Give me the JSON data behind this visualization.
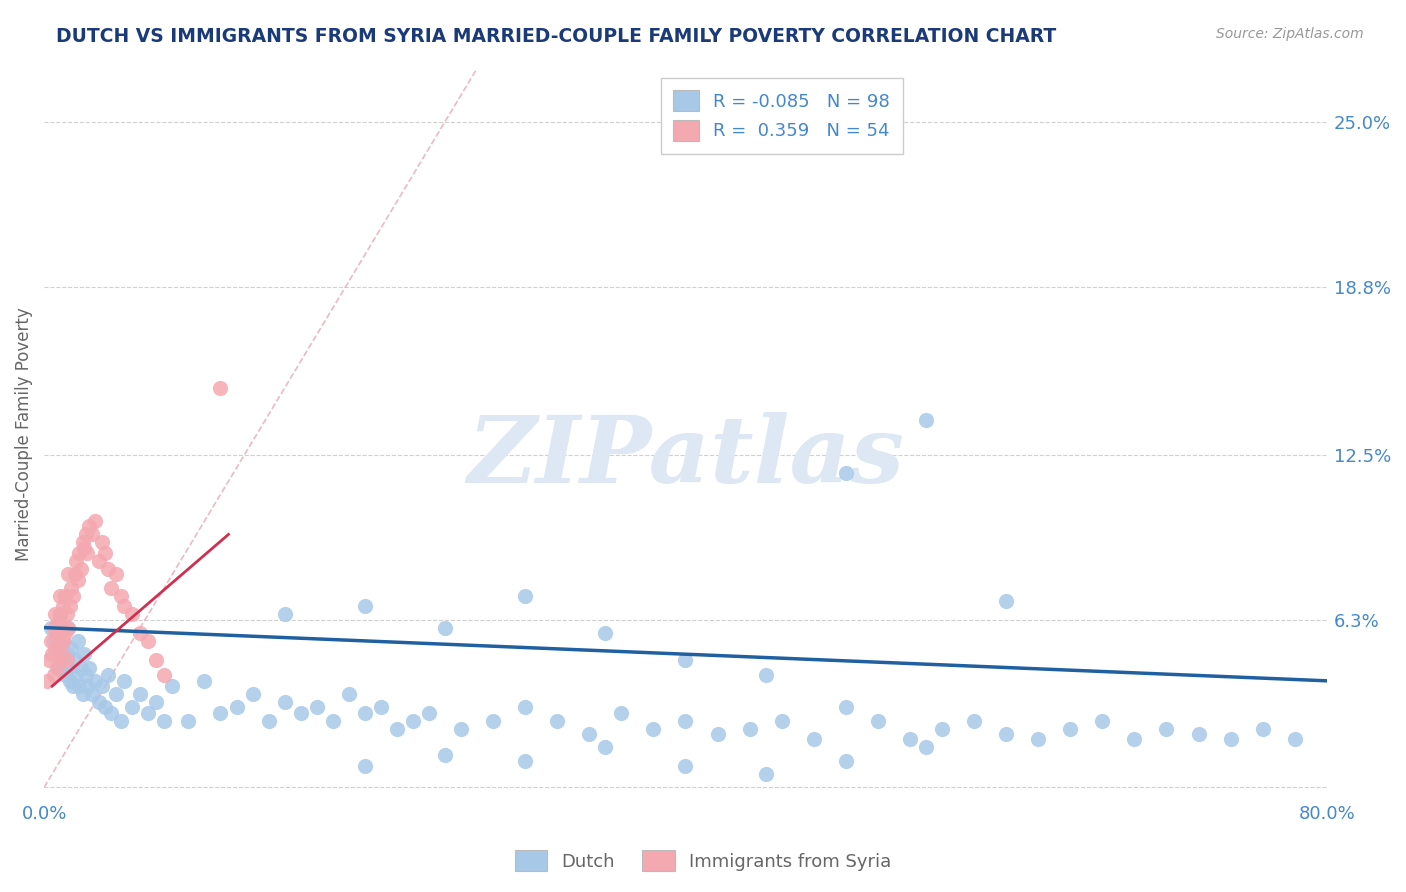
{
  "title": "DUTCH VS IMMIGRANTS FROM SYRIA MARRIED-COUPLE FAMILY POVERTY CORRELATION CHART",
  "source": "Source: ZipAtlas.com",
  "ylabel": "Married-Couple Family Poverty",
  "xlim": [
    0.0,
    0.8
  ],
  "ylim": [
    -0.005,
    0.27
  ],
  "ytick_vals": [
    0.0,
    0.063,
    0.125,
    0.188,
    0.25
  ],
  "ytick_labels": [
    "",
    "6.3%",
    "12.5%",
    "18.8%",
    "25.0%"
  ],
  "xtick_vals": [
    0.0,
    0.8
  ],
  "xtick_labels": [
    "0.0%",
    "80.0%"
  ],
  "dutch_R": -0.085,
  "dutch_N": 98,
  "syria_R": 0.359,
  "syria_N": 54,
  "dutch_color": "#a8c8e8",
  "syria_color": "#f4a8b0",
  "dutch_line_color": "#2060a0",
  "syria_line_color": "#d03050",
  "diag_color": "#e8a8b0",
  "grid_color": "#d0d0d0",
  "title_color": "#1a3a7a",
  "axis_label_color": "#666666",
  "tick_color": "#4488cc",
  "legend_text_color_r": "#cc3333",
  "legend_text_color_n": "#4488cc",
  "watermark_color": "#dde8f4",
  "background_color": "#ffffff",
  "dutch_scatter_x": [
    0.004,
    0.006,
    0.008,
    0.009,
    0.01,
    0.01,
    0.011,
    0.012,
    0.013,
    0.014,
    0.015,
    0.015,
    0.016,
    0.017,
    0.018,
    0.019,
    0.02,
    0.021,
    0.022,
    0.023,
    0.024,
    0.025,
    0.026,
    0.027,
    0.028,
    0.03,
    0.032,
    0.034,
    0.036,
    0.038,
    0.04,
    0.042,
    0.045,
    0.048,
    0.05,
    0.055,
    0.06,
    0.065,
    0.07,
    0.075,
    0.08,
    0.09,
    0.1,
    0.11,
    0.12,
    0.13,
    0.14,
    0.15,
    0.16,
    0.17,
    0.18,
    0.19,
    0.2,
    0.21,
    0.22,
    0.23,
    0.24,
    0.26,
    0.28,
    0.3,
    0.32,
    0.34,
    0.36,
    0.38,
    0.4,
    0.42,
    0.44,
    0.46,
    0.48,
    0.5,
    0.52,
    0.54,
    0.56,
    0.58,
    0.6,
    0.62,
    0.64,
    0.66,
    0.68,
    0.7,
    0.72,
    0.74,
    0.76,
    0.78,
    0.15,
    0.2,
    0.25,
    0.3,
    0.35,
    0.4,
    0.45,
    0.5,
    0.55,
    0.6,
    0.2,
    0.25,
    0.3,
    0.35,
    0.55,
    0.4,
    0.45,
    0.5
  ],
  "dutch_scatter_y": [
    0.06,
    0.055,
    0.058,
    0.045,
    0.065,
    0.052,
    0.048,
    0.055,
    0.042,
    0.05,
    0.045,
    0.06,
    0.04,
    0.052,
    0.038,
    0.048,
    0.042,
    0.055,
    0.038,
    0.045,
    0.035,
    0.05,
    0.042,
    0.038,
    0.045,
    0.035,
    0.04,
    0.032,
    0.038,
    0.03,
    0.042,
    0.028,
    0.035,
    0.025,
    0.04,
    0.03,
    0.035,
    0.028,
    0.032,
    0.025,
    0.038,
    0.025,
    0.04,
    0.028,
    0.03,
    0.035,
    0.025,
    0.032,
    0.028,
    0.03,
    0.025,
    0.035,
    0.028,
    0.03,
    0.022,
    0.025,
    0.028,
    0.022,
    0.025,
    0.03,
    0.025,
    0.02,
    0.028,
    0.022,
    0.025,
    0.02,
    0.022,
    0.025,
    0.018,
    0.03,
    0.025,
    0.018,
    0.022,
    0.025,
    0.02,
    0.018,
    0.022,
    0.025,
    0.018,
    0.022,
    0.02,
    0.018,
    0.022,
    0.018,
    0.065,
    0.068,
    0.06,
    0.072,
    0.058,
    0.048,
    0.042,
    0.118,
    0.138,
    0.07,
    0.008,
    0.012,
    0.01,
    0.015,
    0.015,
    0.008,
    0.005,
    0.01
  ],
  "syria_scatter_x": [
    0.002,
    0.003,
    0.004,
    0.005,
    0.006,
    0.006,
    0.007,
    0.007,
    0.008,
    0.008,
    0.009,
    0.009,
    0.01,
    0.01,
    0.01,
    0.011,
    0.011,
    0.012,
    0.012,
    0.013,
    0.013,
    0.014,
    0.014,
    0.015,
    0.015,
    0.016,
    0.017,
    0.018,
    0.019,
    0.02,
    0.021,
    0.022,
    0.023,
    0.024,
    0.025,
    0.026,
    0.027,
    0.028,
    0.03,
    0.032,
    0.034,
    0.036,
    0.038,
    0.04,
    0.042,
    0.045,
    0.048,
    0.05,
    0.055,
    0.06,
    0.065,
    0.07,
    0.075,
    0.11
  ],
  "syria_scatter_y": [
    0.04,
    0.048,
    0.055,
    0.05,
    0.06,
    0.042,
    0.065,
    0.052,
    0.058,
    0.045,
    0.062,
    0.048,
    0.055,
    0.065,
    0.072,
    0.06,
    0.05,
    0.055,
    0.068,
    0.058,
    0.072,
    0.065,
    0.048,
    0.08,
    0.06,
    0.068,
    0.075,
    0.072,
    0.08,
    0.085,
    0.078,
    0.088,
    0.082,
    0.092,
    0.09,
    0.095,
    0.088,
    0.098,
    0.095,
    0.1,
    0.085,
    0.092,
    0.088,
    0.082,
    0.075,
    0.08,
    0.072,
    0.068,
    0.065,
    0.058,
    0.055,
    0.048,
    0.042,
    0.15
  ],
  "dutch_line_x": [
    0.0,
    0.8
  ],
  "dutch_line_y": [
    0.06,
    0.04
  ],
  "syria_line_x": [
    0.005,
    0.115
  ],
  "syria_line_y": [
    0.038,
    0.095
  ],
  "diag_line_x": [
    0.0,
    0.27
  ],
  "diag_line_y": [
    0.0,
    0.27
  ]
}
